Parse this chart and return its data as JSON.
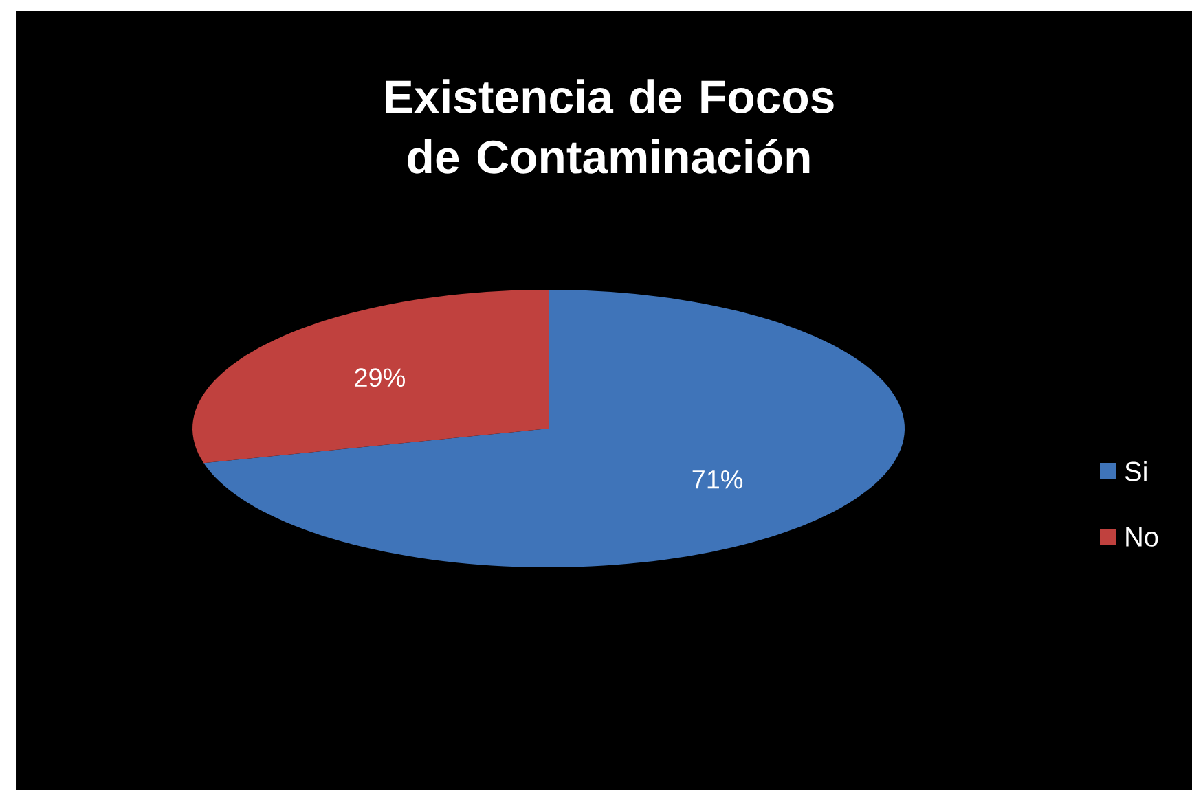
{
  "chart_data": {
    "type": "pie",
    "title": "Existencia de Focos de Contaminación",
    "categories": [
      "Si",
      "No"
    ],
    "values": [
      71,
      29
    ],
    "value_labels": [
      "71%",
      "29%"
    ],
    "colors": [
      "#3f74b9",
      "#c0413e"
    ],
    "legend": "right"
  }
}
